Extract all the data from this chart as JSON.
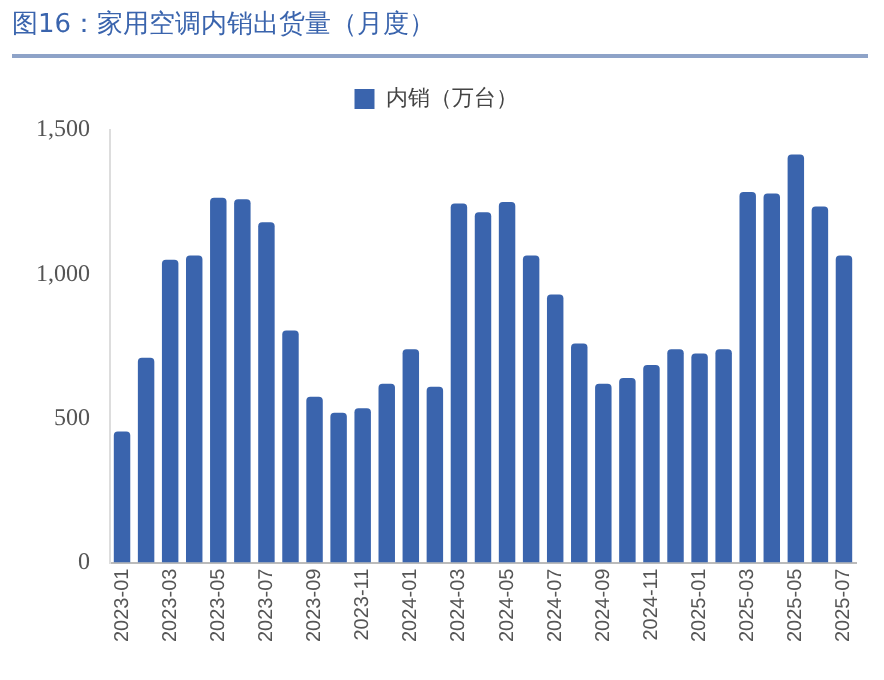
{
  "chart_data": {
    "type": "bar",
    "title": "图16：家用空调内销出货量（月度）",
    "categories": [
      "2023-01",
      null,
      "2023-03",
      null,
      "2023-05",
      null,
      "2023-07",
      null,
      "2023-09",
      null,
      "2023-11",
      null,
      "2024-01",
      null,
      "2024-03",
      null,
      "2024-05",
      null,
      "2024-07",
      null,
      "2024-09",
      null,
      "2024-11",
      null,
      "2025-01",
      null,
      "2025-03",
      null,
      "2025-05",
      null,
      "2025-07"
    ],
    "series": [
      {
        "name": "内销（万台）",
        "color": "#3a64ad",
        "values": [
          455,
          710,
          1050,
          1065,
          1265,
          1260,
          1180,
          805,
          575,
          520,
          535,
          620,
          740,
          610,
          1245,
          1215,
          1250,
          1065,
          930,
          760,
          620,
          640,
          685,
          740,
          725,
          740,
          1285,
          1280,
          1415,
          1235,
          1065
        ]
      }
    ],
    "ylim": [
      0,
      1500
    ],
    "yticks": [
      0,
      500,
      {
        "value": 1000,
        "label": "1,000"
      },
      {
        "value": 1500,
        "label": "1,500"
      }
    ],
    "grid": false,
    "legend": "top"
  }
}
